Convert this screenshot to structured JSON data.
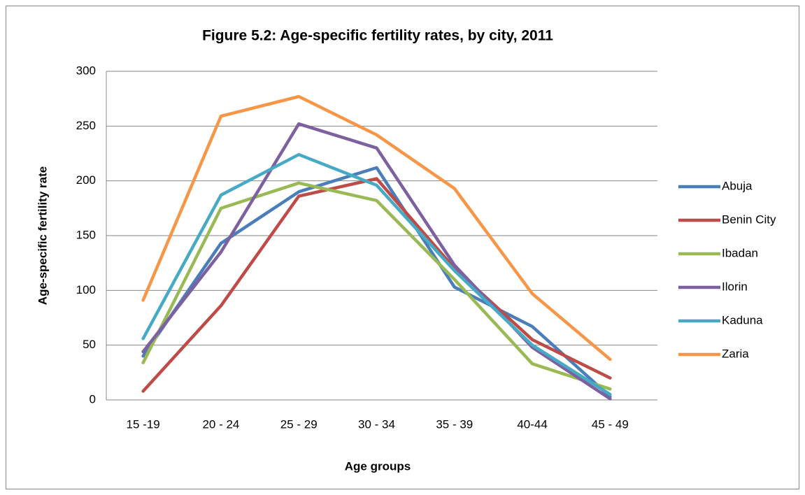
{
  "chart_data": {
    "type": "line",
    "title": "Figure 5.2: Age-specific fertility rates, by city, 2011",
    "x_label": "Age groups",
    "y_label": "Age-specific fertility rate",
    "categories": [
      "15 -19",
      "20 - 24",
      "25 - 29",
      "30 - 34",
      "35 - 39",
      "40-44",
      "45 - 49"
    ],
    "series": [
      {
        "name": "Abuja",
        "color": "#4a7ebb",
        "values": [
          40,
          143,
          190,
          212,
          103,
          67,
          3
        ]
      },
      {
        "name": "Benin City",
        "color": "#be4b48",
        "values": [
          8,
          86,
          186,
          202,
          120,
          55,
          20
        ]
      },
      {
        "name": "Ibadan",
        "color": "#98b954",
        "values": [
          34,
          175,
          198,
          182,
          110,
          33,
          10
        ]
      },
      {
        "name": "Ilorin",
        "color": "#7d60a0",
        "values": [
          44,
          135,
          252,
          230,
          123,
          48,
          1
        ]
      },
      {
        "name": "Kaduna",
        "color": "#46aac5",
        "values": [
          56,
          187,
          224,
          196,
          118,
          50,
          5
        ]
      },
      {
        "name": "Zaria",
        "color": "#f79646",
        "values": [
          91,
          259,
          277,
          242,
          193,
          97,
          37
        ]
      }
    ],
    "ylim": [
      0,
      300
    ],
    "yticks": [
      0,
      50,
      100,
      150,
      200,
      250,
      300
    ],
    "grid": true,
    "legend": "right"
  }
}
